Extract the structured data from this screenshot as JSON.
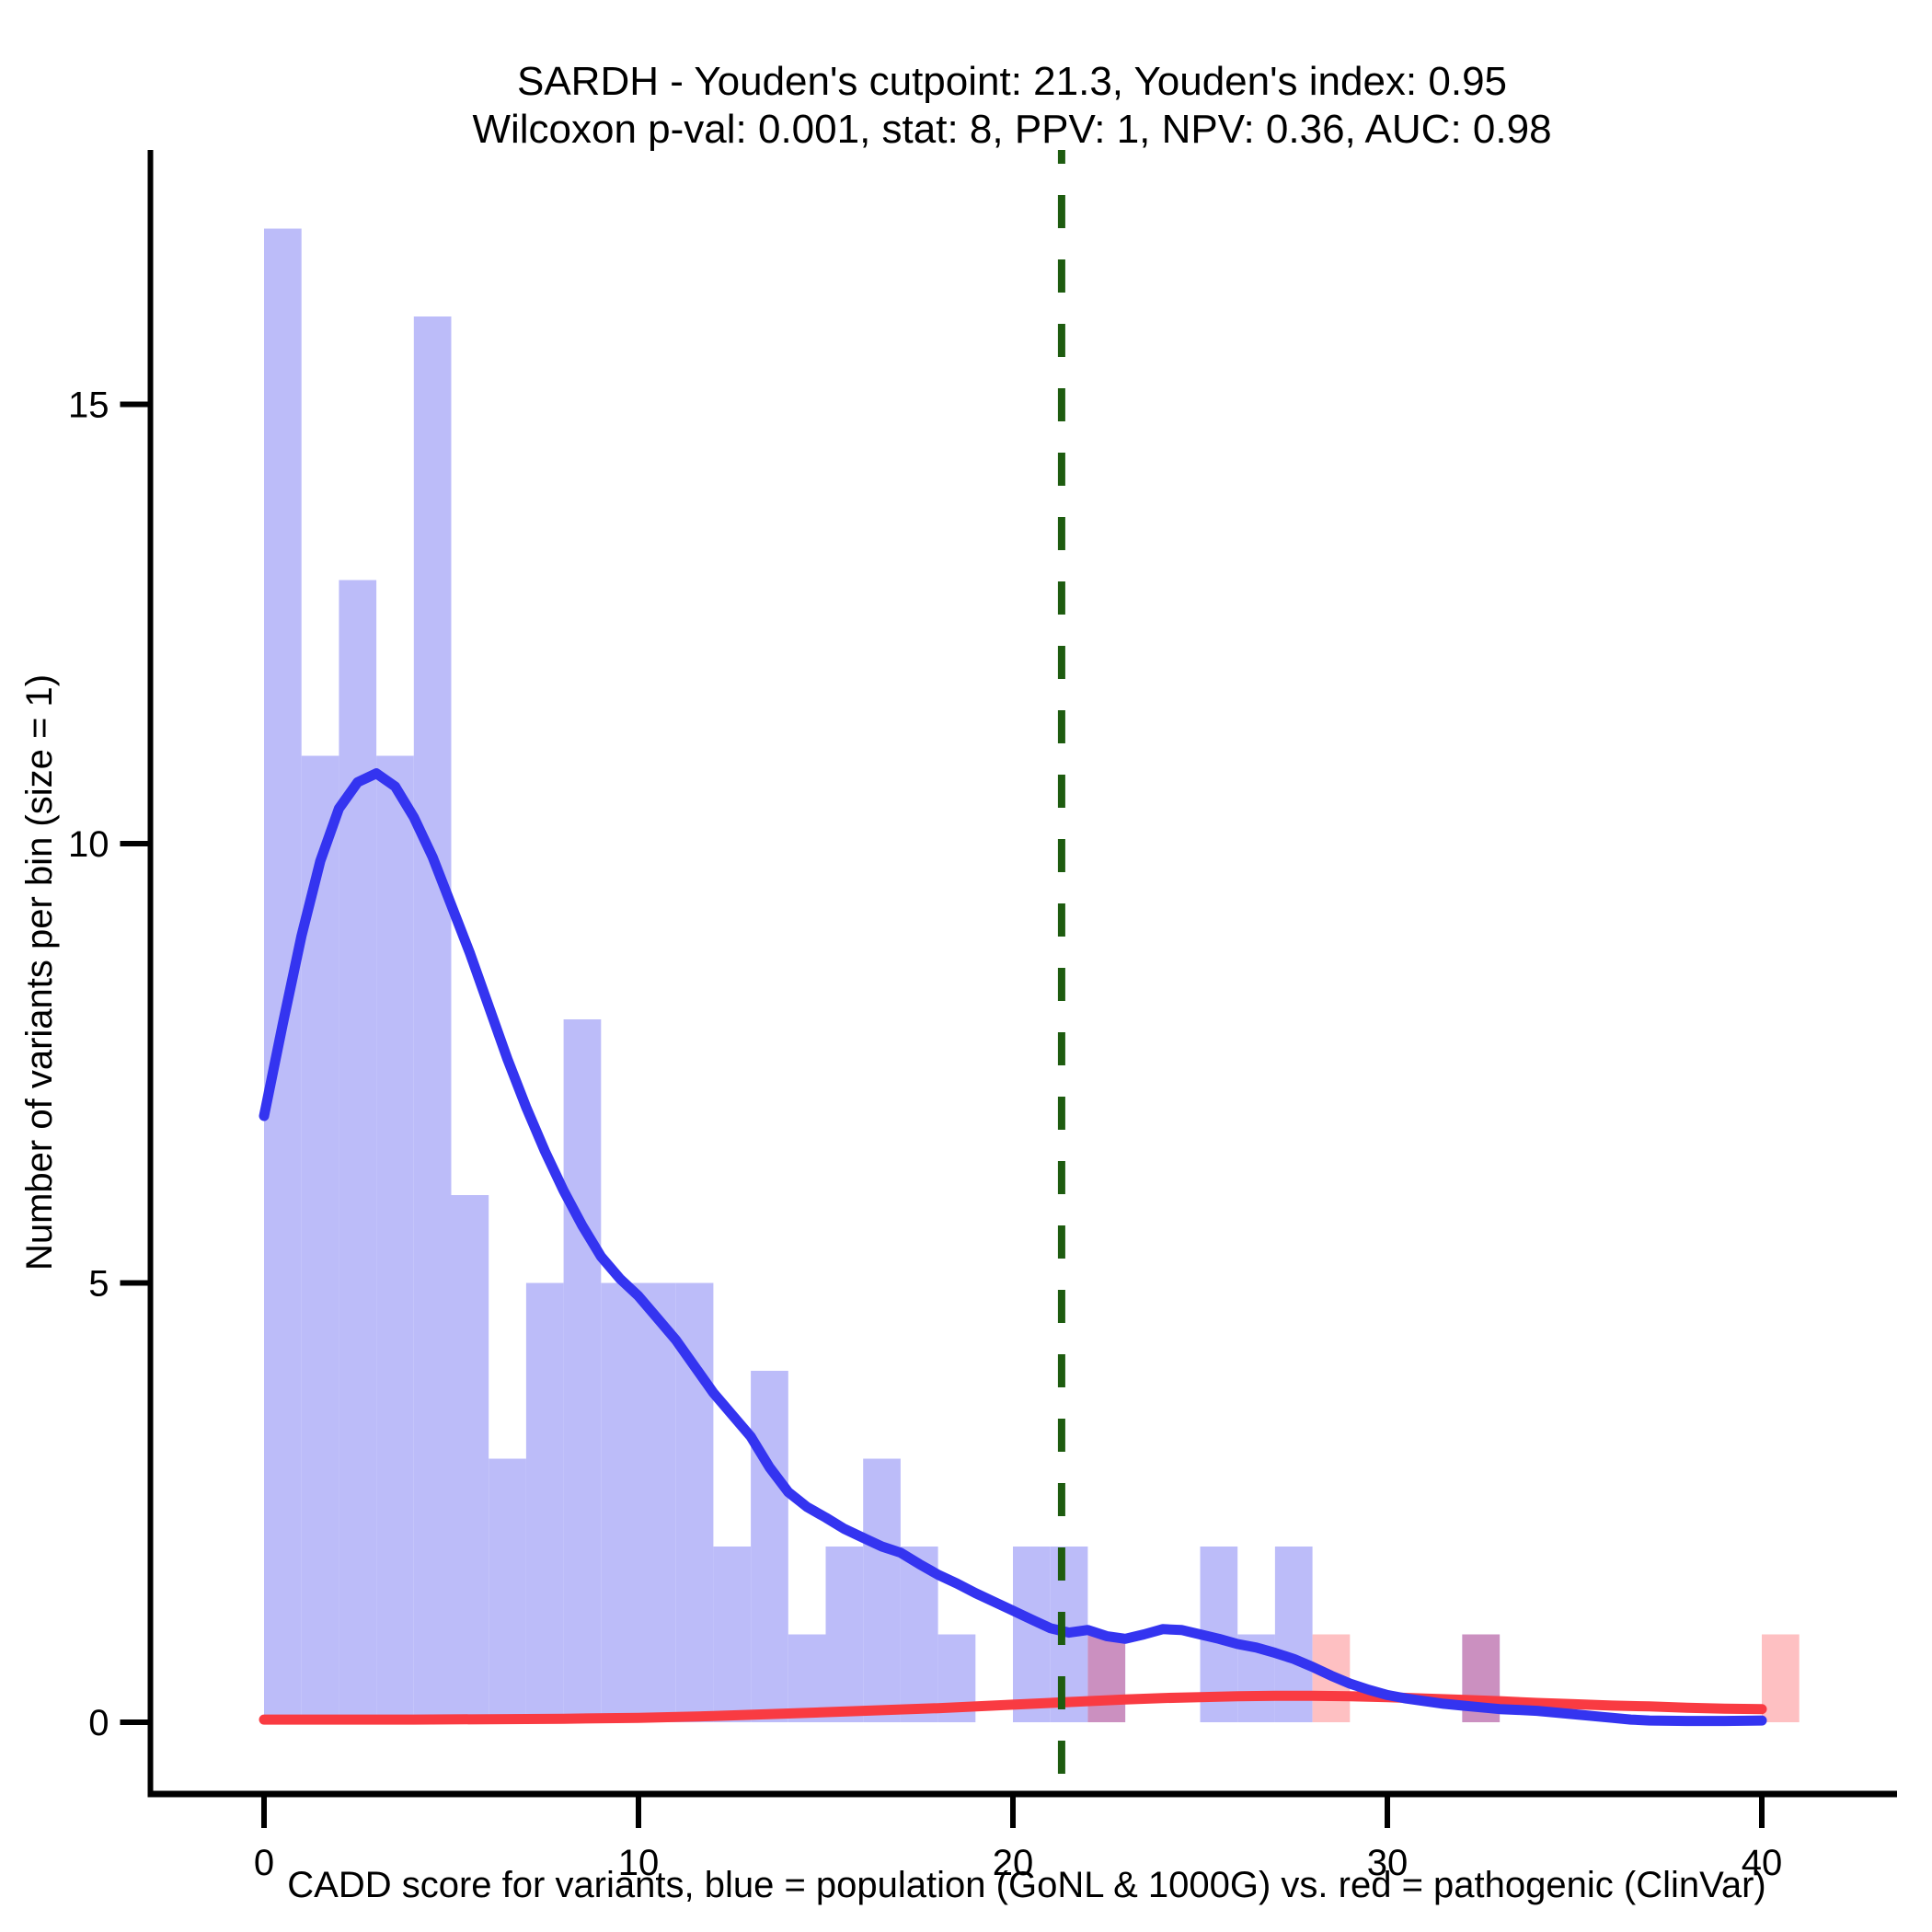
{
  "title": {
    "line1": "SARDH - Youden's cutpoint: 21.3, Youden's index: 0.95",
    "line2": "Wilcoxon p-val: 0.001, stat: 8, PPV: 1, NPV: 0.36, AUC: 0.98"
  },
  "colors": {
    "blue_bar_fill": "#bcbcf9",
    "red_bar_fill": "#fec0c2",
    "overlap_bar_fill": "#cb90c0",
    "blue_curve": "#3434f0",
    "red_curve": "#f93b42",
    "cutpoint_line": "#1e5c10",
    "axis": "#000000"
  },
  "chart_data": {
    "type": "histogram_with_density",
    "title": "SARDH - Youden's cutpoint: 21.3, Youden's index: 0.95 | Wilcoxon p-val: 0.001, stat: 8, PPV: 1, NPV: 0.36, AUC: 0.98",
    "xlabel": "CADD score for variants, blue = population (GoNL & 1000G) vs. red = pathogenic (ClinVar)",
    "ylabel": "Number of variants per bin (size = 1)",
    "x_ticks": [
      0,
      10,
      20,
      30,
      40
    ],
    "y_ticks": [
      0,
      5,
      10,
      15
    ],
    "xlim": [
      0,
      41
    ],
    "ylim": [
      0,
      17.9
    ],
    "bin_width": 1,
    "cutpoint": 21.3,
    "youden_index": 0.95,
    "wilcoxon_p": 0.001,
    "wilcoxon_stat": 8,
    "ppv": 1,
    "npv": 0.36,
    "auc": 0.98,
    "series": [
      {
        "name": "population (GoNL & 1000G)",
        "role": "blue_histogram"
      },
      {
        "name": "pathogenic (ClinVar)",
        "role": "red_histogram"
      }
    ],
    "blue_bins": [
      [
        0,
        17
      ],
      [
        1,
        11
      ],
      [
        2,
        13
      ],
      [
        3,
        11
      ],
      [
        4,
        16
      ],
      [
        5,
        6
      ],
      [
        6,
        3
      ],
      [
        7,
        5
      ],
      [
        8,
        8
      ],
      [
        9,
        5
      ],
      [
        10,
        5
      ],
      [
        11,
        5
      ],
      [
        12,
        2
      ],
      [
        13,
        4
      ],
      [
        14,
        1
      ],
      [
        15,
        2
      ],
      [
        16,
        3
      ],
      [
        17,
        2
      ],
      [
        18,
        1
      ],
      [
        20,
        2
      ],
      [
        21,
        2
      ],
      [
        22,
        1
      ],
      [
        25,
        2
      ],
      [
        26,
        1
      ],
      [
        27,
        2
      ],
      [
        32,
        1
      ]
    ],
    "red_bins": [
      [
        22,
        1
      ],
      [
        28,
        1
      ],
      [
        32,
        1
      ],
      [
        40,
        1
      ]
    ],
    "overlap_bins": [
      22,
      32
    ],
    "blue_density": [
      [
        0,
        6.9
      ],
      [
        0.5,
        7.95
      ],
      [
        1,
        8.95
      ],
      [
        1.5,
        9.8
      ],
      [
        2,
        10.4
      ],
      [
        2.5,
        10.7
      ],
      [
        3,
        10.8
      ],
      [
        3.5,
        10.65
      ],
      [
        4,
        10.3
      ],
      [
        4.5,
        9.85
      ],
      [
        5,
        9.3
      ],
      [
        5.5,
        8.75
      ],
      [
        6,
        8.15
      ],
      [
        6.5,
        7.55
      ],
      [
        7,
        7.0
      ],
      [
        7.5,
        6.5
      ],
      [
        8,
        6.05
      ],
      [
        8.5,
        5.65
      ],
      [
        9,
        5.3
      ],
      [
        9.5,
        5.05
      ],
      [
        10,
        4.85
      ],
      [
        10.5,
        4.6
      ],
      [
        11,
        4.35
      ],
      [
        11.5,
        4.05
      ],
      [
        12,
        3.75
      ],
      [
        12.5,
        3.5
      ],
      [
        13,
        3.25
      ],
      [
        13.5,
        2.9
      ],
      [
        14,
        2.62
      ],
      [
        14.5,
        2.45
      ],
      [
        15,
        2.33
      ],
      [
        15.5,
        2.2
      ],
      [
        16,
        2.1
      ],
      [
        16.5,
        2.0
      ],
      [
        17,
        1.93
      ],
      [
        17.5,
        1.8
      ],
      [
        18,
        1.68
      ],
      [
        18.5,
        1.58
      ],
      [
        19,
        1.47
      ],
      [
        19.5,
        1.37
      ],
      [
        20,
        1.27
      ],
      [
        20.5,
        1.17
      ],
      [
        21,
        1.07
      ],
      [
        21.5,
        1.02
      ],
      [
        22,
        1.05
      ],
      [
        22.5,
        0.98
      ],
      [
        23,
        0.95
      ],
      [
        23.5,
        1.0
      ],
      [
        24,
        1.06
      ],
      [
        24.5,
        1.05
      ],
      [
        25,
        1.0
      ],
      [
        25.5,
        0.95
      ],
      [
        26,
        0.89
      ],
      [
        26.5,
        0.85
      ],
      [
        27,
        0.79
      ],
      [
        27.5,
        0.72
      ],
      [
        28,
        0.63
      ],
      [
        28.5,
        0.53
      ],
      [
        29,
        0.44
      ],
      [
        29.5,
        0.37
      ],
      [
        30,
        0.31
      ],
      [
        30.5,
        0.27
      ],
      [
        31,
        0.24
      ],
      [
        31.5,
        0.21
      ],
      [
        32,
        0.19
      ],
      [
        32.5,
        0.17
      ],
      [
        33,
        0.15
      ],
      [
        33.5,
        0.14
      ],
      [
        34,
        0.13
      ],
      [
        34.5,
        0.11
      ],
      [
        35,
        0.09
      ],
      [
        35.5,
        0.07
      ],
      [
        36,
        0.05
      ],
      [
        36.5,
        0.03
      ],
      [
        37,
        0.02
      ],
      [
        38,
        0.015
      ],
      [
        39,
        0.015
      ],
      [
        40,
        0.02
      ]
    ],
    "red_density": [
      [
        0,
        0.03
      ],
      [
        2,
        0.03
      ],
      [
        4,
        0.03
      ],
      [
        6,
        0.035
      ],
      [
        8,
        0.04
      ],
      [
        10,
        0.05
      ],
      [
        12,
        0.07
      ],
      [
        14,
        0.1
      ],
      [
        16,
        0.13
      ],
      [
        18,
        0.16
      ],
      [
        20,
        0.2
      ],
      [
        21,
        0.22
      ],
      [
        22,
        0.24
      ],
      [
        23,
        0.26
      ],
      [
        24,
        0.275
      ],
      [
        25,
        0.285
      ],
      [
        26,
        0.295
      ],
      [
        27,
        0.3
      ],
      [
        28,
        0.3
      ],
      [
        29,
        0.295
      ],
      [
        30,
        0.285
      ],
      [
        31,
        0.27
      ],
      [
        32,
        0.255
      ],
      [
        33,
        0.24
      ],
      [
        34,
        0.22
      ],
      [
        35,
        0.205
      ],
      [
        36,
        0.19
      ],
      [
        37,
        0.18
      ],
      [
        38,
        0.165
      ],
      [
        39,
        0.155
      ],
      [
        40,
        0.15
      ]
    ]
  }
}
